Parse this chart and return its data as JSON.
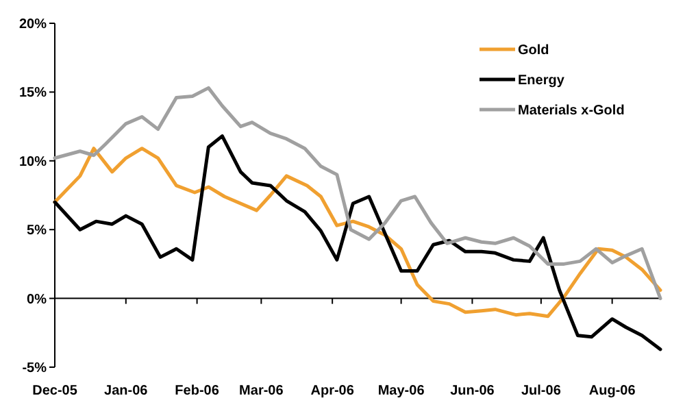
{
  "chart_data": {
    "type": "line",
    "xlim": [
      "2005-12-01",
      "2006-08-22"
    ],
    "ylim": [
      -5,
      20
    ],
    "xticks": [
      {
        "value": "2005-12-01",
        "label": "Dec-05"
      },
      {
        "value": "2006-01-01",
        "label": "Jan-06"
      },
      {
        "value": "2006-02-01",
        "label": "Feb-06"
      },
      {
        "value": "2006-03-01",
        "label": "Mar-06"
      },
      {
        "value": "2006-04-01",
        "label": "Apr-06"
      },
      {
        "value": "2006-05-01",
        "label": "May-06"
      },
      {
        "value": "2006-06-01",
        "label": "Jun-06"
      },
      {
        "value": "2006-07-01",
        "label": "Jul-06"
      },
      {
        "value": "2006-08-01",
        "label": "Aug-06"
      }
    ],
    "yticks": [
      {
        "value": -5,
        "label": "-5%"
      },
      {
        "value": 0,
        "label": "0%"
      },
      {
        "value": 5,
        "label": "5%"
      },
      {
        "value": 10,
        "label": "10%"
      },
      {
        "value": 15,
        "label": "15%"
      },
      {
        "value": 20,
        "label": "20%"
      }
    ],
    "legend": "top right",
    "marker": "none",
    "line_style": "solid",
    "series": [
      {
        "name": "Gold",
        "color": "#f0a030",
        "x": [
          "2005-12-01",
          "2005-12-12",
          "2005-12-18",
          "2005-12-26",
          "2006-01-01",
          "2006-01-08",
          "2006-01-15",
          "2006-01-23",
          "2006-01-31",
          "2006-02-06",
          "2006-02-13",
          "2006-02-27",
          "2006-03-05",
          "2006-03-12",
          "2006-03-21",
          "2006-03-27",
          "2006-04-03",
          "2006-04-10",
          "2006-04-17",
          "2006-04-24",
          "2006-05-01",
          "2006-05-08",
          "2006-05-15",
          "2006-05-22",
          "2006-05-29",
          "2006-06-05",
          "2006-06-11",
          "2006-06-20",
          "2006-06-26",
          "2006-07-04",
          "2006-07-11",
          "2006-07-18",
          "2006-07-26",
          "2006-08-01",
          "2006-08-07",
          "2006-08-14",
          "2006-08-22"
        ],
        "values": [
          7.0,
          8.9,
          10.9,
          9.2,
          10.2,
          10.9,
          10.2,
          8.2,
          7.7,
          8.1,
          7.4,
          6.4,
          7.5,
          8.9,
          8.2,
          7.4,
          5.3,
          5.6,
          5.2,
          4.6,
          3.6,
          1.0,
          -0.2,
          -0.4,
          -1.0,
          -0.9,
          -0.8,
          -1.2,
          -1.1,
          -1.3,
          0.1,
          1.8,
          3.6,
          3.5,
          3.0,
          2.1,
          0.6
        ]
      },
      {
        "name": "Energy",
        "color": "#000000",
        "x": [
          "2005-12-01",
          "2005-12-12",
          "2005-12-19",
          "2005-12-26",
          "2006-01-01",
          "2006-01-08",
          "2006-01-16",
          "2006-01-23",
          "2006-01-30",
          "2006-02-06",
          "2006-02-12",
          "2006-02-20",
          "2006-02-25",
          "2006-03-05",
          "2006-03-12",
          "2006-03-20",
          "2006-03-27",
          "2006-04-03",
          "2006-04-10",
          "2006-04-17",
          "2006-05-01",
          "2006-05-08",
          "2006-05-15",
          "2006-05-22",
          "2006-05-29",
          "2006-06-05",
          "2006-06-11",
          "2006-06-19",
          "2006-06-26",
          "2006-07-02",
          "2006-07-09",
          "2006-07-17",
          "2006-07-23",
          "2006-08-01",
          "2006-08-07",
          "2006-08-14",
          "2006-08-22"
        ],
        "values": [
          7.0,
          5.0,
          5.6,
          5.4,
          6.0,
          5.4,
          3.0,
          3.6,
          2.8,
          11.0,
          11.8,
          9.2,
          8.4,
          8.2,
          7.1,
          6.3,
          4.9,
          2.8,
          6.9,
          7.4,
          2.0,
          2.0,
          3.9,
          4.2,
          3.4,
          3.4,
          3.3,
          2.8,
          2.7,
          4.4,
          0.6,
          -2.7,
          -2.8,
          -1.5,
          -2.1,
          -2.7,
          -3.7
        ]
      },
      {
        "name": "Materials x-Gold",
        "color": "#a0a0a0",
        "x": [
          "2005-12-01",
          "2005-12-12",
          "2005-12-18",
          "2005-12-23",
          "2006-01-01",
          "2006-01-08",
          "2006-01-15",
          "2006-01-23",
          "2006-01-30",
          "2006-02-06",
          "2006-02-12",
          "2006-02-20",
          "2006-02-25",
          "2006-03-05",
          "2006-03-12",
          "2006-03-20",
          "2006-03-27",
          "2006-04-03",
          "2006-04-09",
          "2006-04-17",
          "2006-04-24",
          "2006-05-01",
          "2006-05-07",
          "2006-05-14",
          "2006-05-21",
          "2006-05-29",
          "2006-06-05",
          "2006-06-11",
          "2006-06-19",
          "2006-06-26",
          "2006-07-04",
          "2006-07-11",
          "2006-07-18",
          "2006-07-25",
          "2006-08-01",
          "2006-08-07",
          "2006-08-14",
          "2006-08-22"
        ],
        "values": [
          10.2,
          10.7,
          10.4,
          11.2,
          12.7,
          13.2,
          12.3,
          14.6,
          14.7,
          15.3,
          14.0,
          12.5,
          12.8,
          12.0,
          11.6,
          10.9,
          9.6,
          9.0,
          5.0,
          4.3,
          5.5,
          7.1,
          7.4,
          5.5,
          4.0,
          4.4,
          4.1,
          4.0,
          4.4,
          3.8,
          2.5,
          2.5,
          2.7,
          3.6,
          2.6,
          3.1,
          3.6,
          0
        ]
      }
    ]
  }
}
